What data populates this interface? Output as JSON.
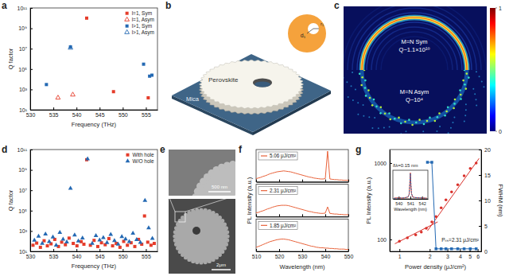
{
  "chart_data": [
    {
      "panel": "a",
      "type": "scatter",
      "xlabel": "Frequency (THz)",
      "ylabel": "Q factor",
      "log": "y",
      "xlim": [
        530,
        557.5
      ],
      "xticks": [
        530,
        535,
        540,
        545,
        550,
        555
      ],
      "ylim": [
        10,
        100000000000
      ],
      "yticks": [
        {
          "value": 10,
          "label": "10¹"
        },
        {
          "value": 1000,
          "label": "10³"
        },
        {
          "value": 100000,
          "label": "10⁵"
        },
        {
          "value": 10000000,
          "label": "10⁷"
        },
        {
          "value": 1000000000,
          "label": "10⁹"
        },
        {
          "value": 100000000000,
          "label": "10¹¹"
        }
      ],
      "legend": "top-right",
      "series": [
        {
          "name": "l=1, Sym",
          "color": "#e53c2a",
          "marker": "square",
          "x": [
            542.2,
            548,
            555.5
          ],
          "values": [
            10000000000,
            600,
            150
          ]
        },
        {
          "name": "l=1, Asym",
          "color": "#e53c2a",
          "marker": "open-triangle",
          "x": [
            536,
            539.2
          ],
          "values": [
            150,
            300
          ]
        },
        {
          "name": "l>1, Sym",
          "color": "#2469b3",
          "marker": "square",
          "x": [
            533.5,
            538.7,
            554.5,
            555.8,
            556.3
          ],
          "values": [
            3000,
            15000000,
            300000,
            20000,
            25000
          ]
        },
        {
          "name": "l>1, Asym",
          "color": "#2469b3",
          "marker": "open-triangle",
          "x": [
            538.7
          ],
          "values": [
            12000000
          ]
        }
      ]
    },
    {
      "panel": "b",
      "type": "diagram",
      "labels": [
        "Perovskite",
        "Mica",
        "d₁",
        "r₁"
      ]
    },
    {
      "panel": "c",
      "type": "image",
      "annotations": [
        "M=N Sym",
        "Q~1.1×10¹⁰",
        "M=N Asym",
        "Q~10⁴"
      ],
      "colorbar": {
        "range": [
          0,
          1
        ],
        "ticks": [
          0,
          1
        ]
      }
    },
    {
      "panel": "d",
      "type": "scatter",
      "xlabel": "Frequency (THz)",
      "ylabel": "Q factor",
      "log": "y",
      "xlim": [
        530,
        557.5
      ],
      "xticks": [
        530,
        535,
        540,
        545,
        550,
        555
      ],
      "ylim": [
        10,
        100000000000
      ],
      "yticks": [
        {
          "value": 10,
          "label": "10¹"
        },
        {
          "value": 1000,
          "label": "10³"
        },
        {
          "value": 100000,
          "label": "10⁵"
        },
        {
          "value": 10000000,
          "label": "10⁷"
        },
        {
          "value": 1000000000,
          "label": "10⁹"
        },
        {
          "value": 100000000000,
          "label": "10¹¹"
        }
      ],
      "legend": "top-right",
      "series": [
        {
          "name": "With hole",
          "color": "#e53c2a",
          "marker": "square",
          "x": [
            530.6,
            531.4,
            532.2,
            533.0,
            533.7,
            534.5,
            535.3,
            536.1,
            536.8,
            537.6,
            538.4,
            539.3,
            540.1,
            541.0,
            541.6,
            542.2,
            543.0,
            543.8,
            544.6,
            545.4,
            546.2,
            547.0,
            547.8,
            548.6,
            549.4,
            550.2,
            551.0,
            551.8,
            552.6,
            553.4,
            554.1,
            554.7,
            555.4,
            556.1,
            556.8
          ],
          "values": [
            40,
            65,
            25,
            110,
            35,
            55,
            150,
            30,
            80,
            45,
            200,
            60,
            35,
            90,
            50,
            10000000000,
            40,
            120,
            30,
            70,
            45,
            180,
            35,
            60,
            25,
            95,
            40,
            70,
            30,
            150,
            50,
            30000,
            80,
            40,
            60
          ]
        },
        {
          "name": "W/O hole",
          "color": "#2469b3",
          "marker": "triangle",
          "x": [
            530.9,
            531.8,
            532.6,
            533.3,
            534.1,
            534.9,
            535.6,
            536.4,
            537.1,
            537.9,
            538.7,
            539.6,
            540.4,
            541.3,
            542.4,
            543.4,
            544.2,
            545.0,
            545.8,
            546.6,
            547.4,
            548.2,
            549.0,
            549.8,
            550.6,
            551.4,
            552.2,
            553.0,
            553.8,
            554.8,
            555.6,
            556.4
          ],
          "values": [
            120,
            300,
            60,
            500,
            90,
            250,
            40,
            700,
            150,
            80,
            15000000,
            400,
            100,
            200,
            12000000000,
            60,
            350,
            130,
            220,
            70,
            450,
            110,
            50,
            280,
            160,
            90,
            600,
            140,
            75,
            1000000,
            2000,
            180
          ]
        }
      ]
    },
    {
      "panel": "e",
      "type": "image",
      "annotations": [
        "500 nm",
        "2μm"
      ]
    },
    {
      "panel": "f",
      "type": "line",
      "xlabel": "Wavelength (nm)",
      "ylabel": "PL Intensity (a.u.)",
      "x": [
        510,
        511,
        512,
        513,
        514,
        515,
        516,
        517,
        518,
        519,
        520,
        521,
        522,
        523,
        524,
        525,
        526,
        527,
        528,
        529,
        530,
        531,
        532,
        533,
        534,
        535,
        536,
        537,
        538,
        539,
        540,
        541,
        542,
        543,
        544,
        545,
        546,
        547,
        548,
        549,
        550
      ],
      "xlim": [
        510,
        550
      ],
      "xticks": [
        510,
        520,
        530,
        540,
        550
      ],
      "ylim": [
        0,
        1
      ],
      "tick_labels": "x",
      "legend": "top-left",
      "series": [
        {
          "name": "5.06 μJ/cm²",
          "color": "#e8623a",
          "values": [
            0.1,
            0.12,
            0.14,
            0.17,
            0.19,
            0.22,
            0.25,
            0.27,
            0.29,
            0.31,
            0.32,
            0.33,
            0.34,
            0.33,
            0.32,
            0.31,
            0.29,
            0.27,
            0.25,
            0.23,
            0.21,
            0.19,
            0.17,
            0.15,
            0.14,
            0.12,
            0.11,
            0.1,
            0.09,
            0.09,
            0.1,
            0.95,
            0.09,
            0.08,
            0.07,
            0.07,
            0.06,
            0.06,
            0.05,
            0.05,
            0.05
          ]
        },
        {
          "name": "2.31 μJ/cm²",
          "color": "#e8623a",
          "values": [
            0.12,
            0.13,
            0.16,
            0.18,
            0.21,
            0.24,
            0.26,
            0.29,
            0.31,
            0.33,
            0.34,
            0.35,
            0.35,
            0.35,
            0.34,
            0.32,
            0.3,
            0.28,
            0.26,
            0.24,
            0.22,
            0.2,
            0.18,
            0.16,
            0.15,
            0.13,
            0.12,
            0.11,
            0.1,
            0.1,
            0.11,
            0.3,
            0.1,
            0.09,
            0.08,
            0.08,
            0.07,
            0.07,
            0.06,
            0.06,
            0.06
          ]
        },
        {
          "name": "1.85 μJ/cm²",
          "color": "#e8623a",
          "values": [
            0.13,
            0.15,
            0.18,
            0.21,
            0.24,
            0.27,
            0.3,
            0.32,
            0.34,
            0.36,
            0.37,
            0.38,
            0.38,
            0.37,
            0.36,
            0.34,
            0.32,
            0.3,
            0.28,
            0.26,
            0.24,
            0.22,
            0.2,
            0.18,
            0.16,
            0.15,
            0.13,
            0.12,
            0.11,
            0.11,
            0.1,
            0.1,
            0.09,
            0.09,
            0.08,
            0.08,
            0.07,
            0.07,
            0.07,
            0.06,
            0.06
          ]
        }
      ]
    },
    {
      "panel": "g",
      "type": "scatter",
      "xlabel": "Power density (μJ/cm²)",
      "ylabel": "PL Intensity (a.u.)",
      "y2label": "FWHM (nm)",
      "log": true,
      "xlim": [
        0.8,
        6.5
      ],
      "xticks": [
        1,
        2,
        3,
        4,
        5,
        6
      ],
      "ylim": [
        70,
        1500
      ],
      "yticks": [
        100,
        1000
      ],
      "y2lim": [
        0,
        20
      ],
      "y2ticks": [
        0,
        5,
        10,
        15,
        20
      ],
      "annotation": "Pₜₕ=2.31 μJ/cm²",
      "series": [
        {
          "type": "scatter",
          "marker": "circle",
          "color": "#d9302a",
          "x": [
            1.0,
            1.2,
            1.45,
            1.65,
            1.85,
            2.1,
            2.31,
            2.6,
            2.9,
            3.3,
            3.8,
            4.4,
            5.06,
            5.8
          ],
          "values": [
            95,
            105,
            115,
            125,
            140,
            170,
            200,
            260,
            330,
            420,
            520,
            680,
            850,
            1000
          ]
        },
        {
          "type": "line",
          "color": "#d9302a",
          "x": [
            0.9,
            2.4
          ],
          "values": [
            88,
            170
          ]
        },
        {
          "type": "line",
          "color": "#d9302a",
          "x": [
            1.9,
            6.2
          ],
          "values": [
            130,
            1150
          ]
        },
        {
          "type": "line",
          "marker": "square",
          "color": "#2469b3",
          "axis": "y2",
          "x": [
            1.9,
            2.1,
            2.31,
            2.6,
            2.9,
            3.3,
            3.8,
            4.4,
            5.06,
            5.8
          ],
          "values": [
            17.5,
            17.5,
            0.5,
            0.5,
            0.5,
            0.5,
            0.5,
            0.5,
            0.5,
            0.5
          ]
        }
      ]
    },
    {
      "type": "line",
      "xlabel": "Wavelength (nm)",
      "annotation": "δλ=0.15 nm",
      "x": [
        539.6,
        540.0,
        540.4,
        540.6,
        540.8,
        540.9,
        540.95,
        541.0,
        541.05,
        541.1,
        541.2,
        541.4,
        541.8,
        542.2,
        542.4
      ],
      "xlim": [
        539.5,
        542.5
      ],
      "xticks": [
        540,
        541,
        542
      ],
      "ylim": [
        0,
        1.1
      ],
      "tick_labels": "x",
      "series": [
        {
          "color": "#e53c2a",
          "values": [
            0.03,
            0.04,
            0.03,
            0.05,
            0.07,
            0.18,
            0.6,
            1.0,
            0.5,
            0.2,
            0.07,
            0.05,
            0.04,
            0.03,
            0.03
          ]
        },
        {
          "color": "#2469b3",
          "line_style": "dashed",
          "values": [
            0.02,
            0.03,
            0.04,
            0.05,
            0.08,
            0.2,
            0.55,
            0.98,
            0.55,
            0.2,
            0.08,
            0.05,
            0.04,
            0.03,
            0.02
          ]
        }
      ]
    }
  ]
}
